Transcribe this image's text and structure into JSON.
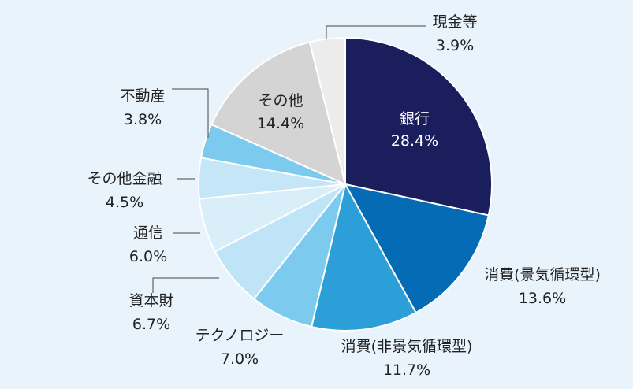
{
  "chart_data": {
    "type": "pie",
    "start": "12 o'clock",
    "direction": "clockwise",
    "slices": [
      {
        "label": "銀行",
        "value": 28.4,
        "value_label": "28.4%",
        "color": "#1a1e5c"
      },
      {
        "label": "消費(景気循環型)",
        "value": 13.6,
        "value_label": "13.6%",
        "color": "#056bb4"
      },
      {
        "label": "消費(非景気循環型)",
        "value": 11.7,
        "value_label": "11.7%",
        "color": "#2c9fd9"
      },
      {
        "label": "テクノロジー",
        "value": 7.0,
        "value_label": "7.0%",
        "color": "#7ccbef"
      },
      {
        "label": "資本財",
        "value": 6.7,
        "value_label": "6.7%",
        "color": "#bfe3f7"
      },
      {
        "label": "通信",
        "value": 6.0,
        "value_label": "6.0%",
        "color": "#d8eef9"
      },
      {
        "label": "その他金融",
        "value": 4.5,
        "value_label": "4.5%",
        "color": "#c4e6f7"
      },
      {
        "label": "不動産",
        "value": 3.8,
        "value_label": "3.8%",
        "color": "#7ccbef"
      },
      {
        "label": "その他",
        "value": 14.4,
        "value_label": "14.4%",
        "color": "#d4d4d4"
      },
      {
        "label": "現金等",
        "value": 3.9,
        "value_label": "3.9%",
        "color": "#ececec"
      }
    ]
  }
}
